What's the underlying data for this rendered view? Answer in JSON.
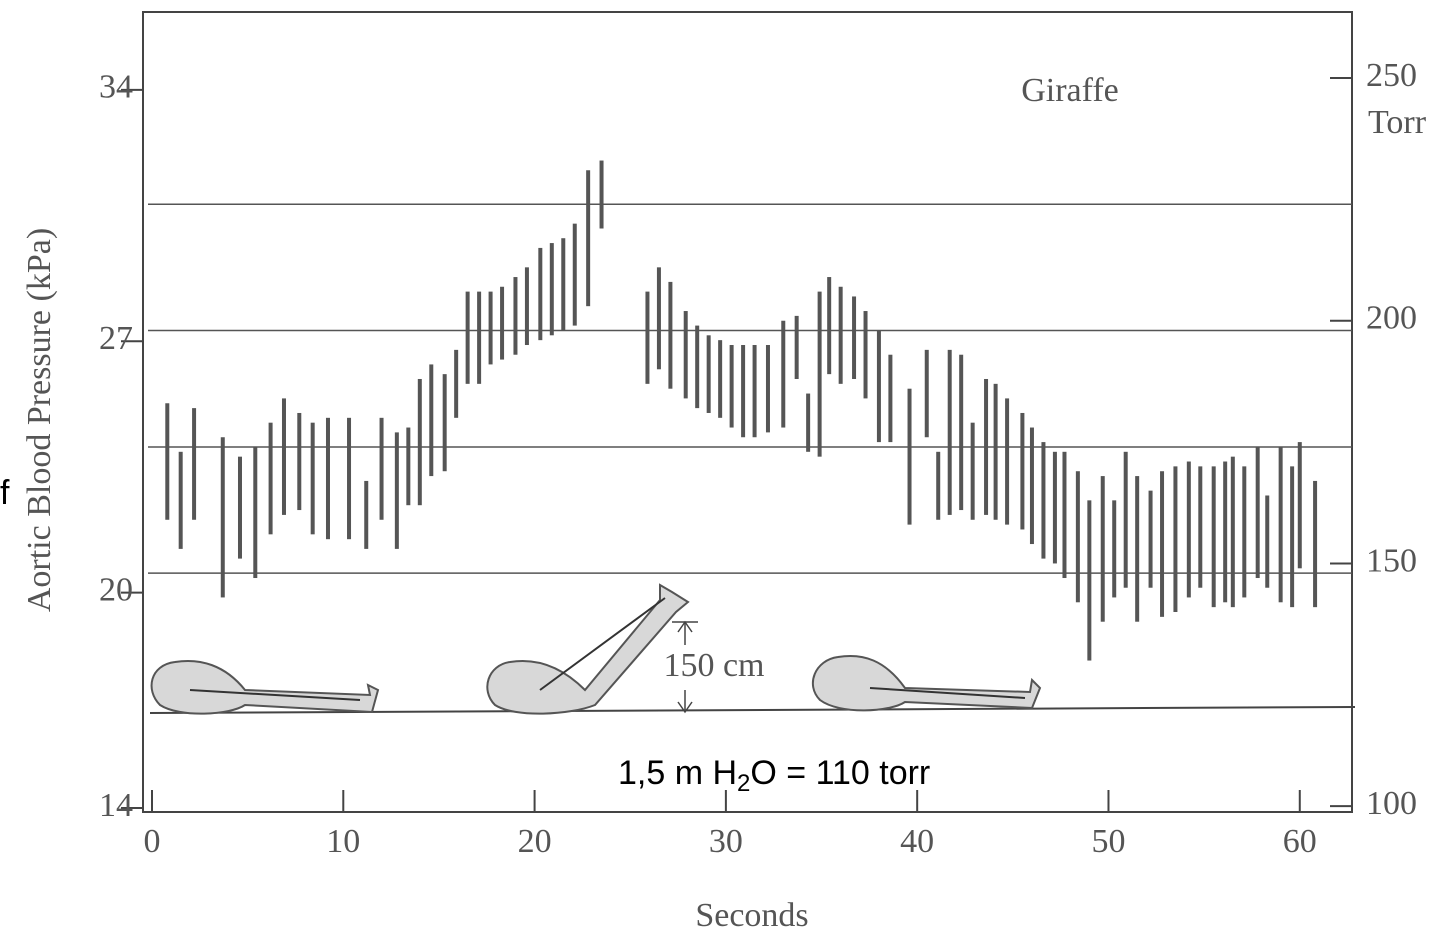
{
  "chart_data": {
    "type": "range-bar",
    "ylabel": "Aortic Blood Pressure (kPa)",
    "xlabel": "Seconds",
    "y2label": "Torr",
    "annotation": "Giraffe",
    "height_label": "150 cm",
    "note": [
      "1,5 m  H",
      "2",
      "O = 110 torr"
    ],
    "side_text": "f",
    "xlim": [
      -0.47,
      62.73
    ],
    "xticks": [
      0,
      10,
      20,
      30,
      40,
      50,
      60
    ],
    "ylim": [
      13.89,
      36.17
    ],
    "yticks": [
      14,
      20,
      27,
      34
    ],
    "y2lim": [
      98.8,
      263.6
    ],
    "y2ticks": [
      100,
      150,
      200,
      250
    ],
    "reference_lines": [
      224,
      198,
      174,
      148
    ],
    "series": [
      {
        "axis": "y2",
        "color": "#555555",
        "x": [
          0.8,
          1.5,
          2.2,
          3.7,
          4.6,
          5.4,
          6.2,
          6.9,
          7.7,
          8.4,
          9.2,
          10.3,
          11.2,
          12.0,
          12.8,
          13.4,
          14.0,
          14.6,
          15.3,
          15.9,
          16.5,
          17.1,
          17.7,
          18.3,
          19.0,
          19.6,
          20.3,
          20.9,
          21.5,
          22.1,
          22.8,
          23.5,
          25.9,
          26.5,
          27.1,
          27.9,
          28.5,
          29.1,
          29.7,
          30.3,
          30.9,
          31.5,
          32.2,
          33.0,
          33.7,
          34.3,
          34.9,
          35.4,
          36.0,
          36.7,
          37.3,
          38.0,
          38.6,
          39.6,
          40.5,
          41.1,
          41.7,
          42.3,
          42.9,
          43.6,
          44.1,
          44.7,
          45.5,
          46.0,
          46.6,
          47.2,
          47.7,
          48.4,
          49.0,
          49.7,
          50.3,
          50.9,
          51.5,
          52.2,
          52.8,
          53.5,
          54.2,
          54.8,
          55.5,
          56.1,
          56.5,
          57.1,
          57.8,
          58.3,
          59.0,
          59.6,
          60.0,
          60.8
        ],
        "high": [
          183,
          173,
          182,
          176,
          172,
          174,
          179,
          184,
          181,
          179,
          180,
          180,
          167,
          180,
          177,
          178,
          188,
          191,
          189,
          194,
          206,
          206,
          206,
          207,
          209,
          211,
          215,
          216,
          217,
          220,
          231,
          233,
          206,
          211,
          208,
          202,
          199,
          197,
          196,
          195,
          195,
          195,
          195,
          200,
          201,
          185,
          206,
          209,
          207,
          205,
          202,
          198,
          193,
          186,
          194,
          173,
          194,
          193,
          179,
          188,
          187,
          184,
          181,
          178,
          175,
          173,
          173,
          169,
          163,
          168,
          163,
          173,
          168,
          165,
          169,
          170,
          171,
          170,
          170,
          171,
          172,
          170,
          174,
          164,
          174,
          170,
          175,
          167
        ],
        "low": [
          159,
          153,
          159,
          143,
          151,
          147,
          156,
          160,
          161,
          156,
          155,
          155,
          153,
          159,
          153,
          162,
          162,
          168,
          169,
          180,
          187,
          187,
          191,
          192,
          193,
          195,
          196,
          197,
          198,
          199,
          203,
          219,
          187,
          190,
          186,
          184,
          182,
          181,
          180,
          178,
          176,
          176,
          177,
          178,
          188,
          173,
          172,
          189,
          187,
          188,
          184,
          175,
          175,
          158,
          176,
          159,
          160,
          161,
          159,
          160,
          159,
          158,
          157,
          154,
          151,
          150,
          147,
          142,
          130,
          138,
          143,
          145,
          138,
          145,
          139,
          140,
          143,
          145,
          141,
          142,
          141,
          143,
          147,
          145,
          142,
          141,
          149,
          141
        ]
      }
    ]
  }
}
